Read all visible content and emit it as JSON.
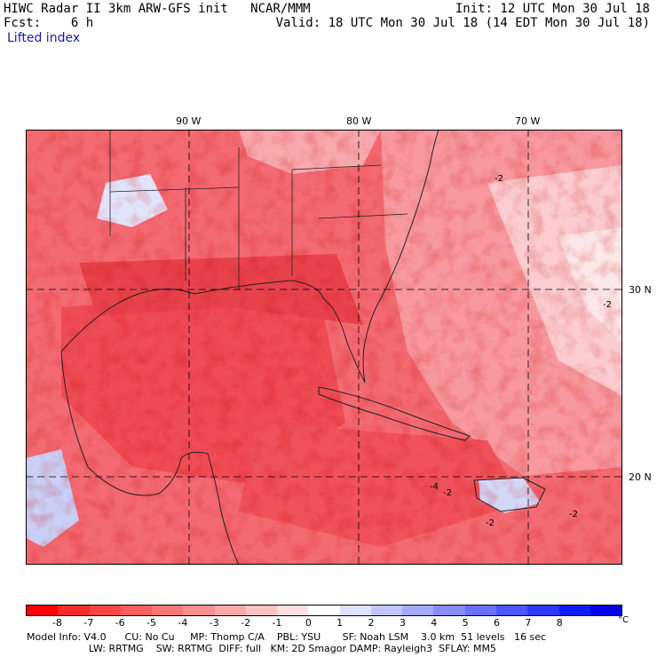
{
  "header": {
    "line1_left": "HIWC Radar II 3km ARW-GFS init   NCAR/MMM",
    "line2_left": "Fcst:    6 h",
    "line1_right": "Init: 12 UTC Mon 30 Jul 18",
    "line2_right": "Valid: 18 UTC Mon 30 Jul 18 (14 EDT Mon 30 Jul 18)"
  },
  "field_name": "Lifted index",
  "map": {
    "lon_labels": [
      "90 W",
      "80 W",
      "70 W"
    ],
    "lat_labels": [
      "30 N",
      "20 N"
    ],
    "contour_labels": [
      "-2",
      "-2",
      "-2",
      "-2",
      "-2",
      "-4"
    ],
    "colors": {
      "very_unstable": "#f0404a",
      "unstable": "#f5707a",
      "moderate": "#f8a0a6",
      "weak": "#fbd2d4",
      "neutral": "#ffffff",
      "stable": "#c8d0f8",
      "contour": "#8a0000"
    }
  },
  "colorbar": {
    "tick_labels": [
      "-8",
      "-7",
      "-6",
      "-5",
      "-4",
      "-3",
      "-2",
      "-1",
      "0",
      "1",
      "2",
      "3",
      "4",
      "5",
      "6",
      "7",
      "8"
    ],
    "unit": "°C",
    "colors": [
      "#ff0000",
      "#ff2a2a",
      "#ff4646",
      "#ff5e5e",
      "#ff7676",
      "#ff8e8e",
      "#ffa8a8",
      "#ffc2c2",
      "#ffe0e0",
      "#ffffff",
      "#e0e2ff",
      "#c2c6ff",
      "#a4aaff",
      "#868eff",
      "#6872ff",
      "#4a56ff",
      "#2c3aff",
      "#0e1eff",
      "#0000e6"
    ]
  },
  "footer": {
    "line1": "Model Info: V4.0      CU: No Cu     MP: Thomp C/A    PBL: YSU       SF: Noah LSM    3.0 km  51 levels   16 sec",
    "line2": "                    LW: RRTMG    SW: RRTMG  DIFF: full   KM: 2D Smagor DAMP: Rayleigh3  SFLAY: MM5"
  }
}
